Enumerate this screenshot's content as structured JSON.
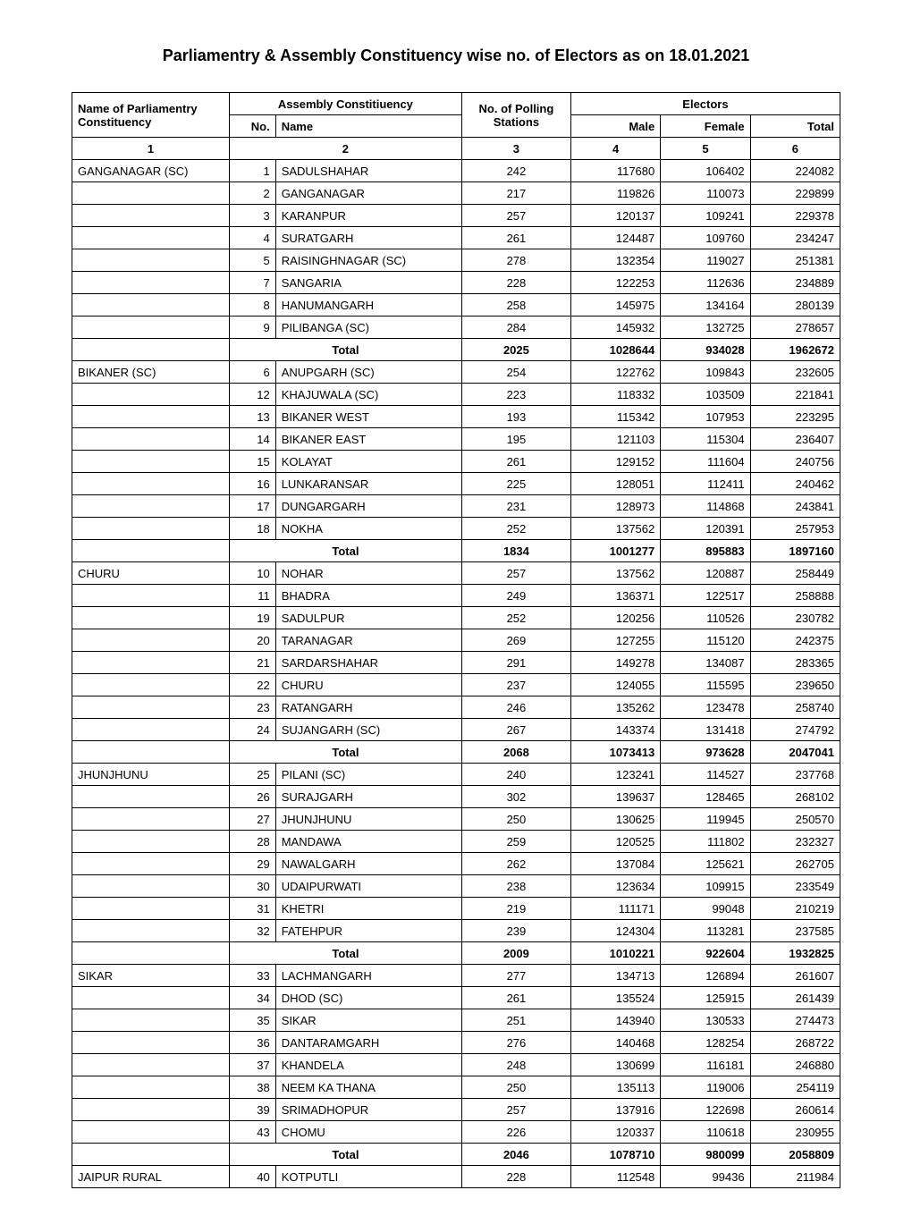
{
  "title": "Parliamentry & Assembly Constituency wise no. of Electors as on 18.01.2021",
  "headers": {
    "parliamentary": "Name of Parliamentry Constituency",
    "assembly": "Assembly Constitiuency",
    "no": "No.",
    "name": "Name",
    "polling": "No. of Polling Stations",
    "electors": "Electors",
    "male": "Male",
    "female": "Female",
    "total": "Total",
    "totalLabel": "Total"
  },
  "colNumbers": {
    "c1": "1",
    "c2": "2",
    "c3": "3",
    "c4": "4",
    "c5": "5",
    "c6": "6"
  },
  "groups": [
    {
      "parliamentary": "GANGANAGAR (SC)",
      "rows": [
        {
          "no": "1",
          "name": "SADULSHAHAR",
          "polling": "242",
          "male": "117680",
          "female": "106402",
          "total": "224082"
        },
        {
          "no": "2",
          "name": "GANGANAGAR",
          "polling": "217",
          "male": "119826",
          "female": "110073",
          "total": "229899"
        },
        {
          "no": "3",
          "name": "KARANPUR",
          "polling": "257",
          "male": "120137",
          "female": "109241",
          "total": "229378"
        },
        {
          "no": "4",
          "name": "SURATGARH",
          "polling": "261",
          "male": "124487",
          "female": "109760",
          "total": "234247"
        },
        {
          "no": "5",
          "name": "RAISINGHNAGAR (SC)",
          "polling": "278",
          "male": "132354",
          "female": "119027",
          "total": "251381"
        },
        {
          "no": "7",
          "name": "SANGARIA",
          "polling": "228",
          "male": "122253",
          "female": "112636",
          "total": "234889"
        },
        {
          "no": "8",
          "name": "HANUMANGARH",
          "polling": "258",
          "male": "145975",
          "female": "134164",
          "total": "280139"
        },
        {
          "no": "9",
          "name": "PILIBANGA (SC)",
          "polling": "284",
          "male": "145932",
          "female": "132725",
          "total": "278657"
        }
      ],
      "totals": {
        "polling": "2025",
        "male": "1028644",
        "female": "934028",
        "total": "1962672"
      }
    },
    {
      "parliamentary": "BIKANER (SC)",
      "rows": [
        {
          "no": "6",
          "name": "ANUPGARH (SC)",
          "polling": "254",
          "male": "122762",
          "female": "109843",
          "total": "232605"
        },
        {
          "no": "12",
          "name": "KHAJUWALA (SC)",
          "polling": "223",
          "male": "118332",
          "female": "103509",
          "total": "221841"
        },
        {
          "no": "13",
          "name": "BIKANER WEST",
          "polling": "193",
          "male": "115342",
          "female": "107953",
          "total": "223295"
        },
        {
          "no": "14",
          "name": "BIKANER EAST",
          "polling": "195",
          "male": "121103",
          "female": "115304",
          "total": "236407"
        },
        {
          "no": "15",
          "name": "KOLAYAT",
          "polling": "261",
          "male": "129152",
          "female": "111604",
          "total": "240756"
        },
        {
          "no": "16",
          "name": "LUNKARANSAR",
          "polling": "225",
          "male": "128051",
          "female": "112411",
          "total": "240462"
        },
        {
          "no": "17",
          "name": "DUNGARGARH",
          "polling": "231",
          "male": "128973",
          "female": "114868",
          "total": "243841"
        },
        {
          "no": "18",
          "name": "NOKHA",
          "polling": "252",
          "male": "137562",
          "female": "120391",
          "total": "257953"
        }
      ],
      "totals": {
        "polling": "1834",
        "male": "1001277",
        "female": "895883",
        "total": "1897160"
      }
    },
    {
      "parliamentary": "CHURU",
      "rows": [
        {
          "no": "10",
          "name": "NOHAR",
          "polling": "257",
          "male": "137562",
          "female": "120887",
          "total": "258449"
        },
        {
          "no": "11",
          "name": "BHADRA",
          "polling": "249",
          "male": "136371",
          "female": "122517",
          "total": "258888"
        },
        {
          "no": "19",
          "name": "SADULPUR",
          "polling": "252",
          "male": "120256",
          "female": "110526",
          "total": "230782"
        },
        {
          "no": "20",
          "name": "TARANAGAR",
          "polling": "269",
          "male": "127255",
          "female": "115120",
          "total": "242375"
        },
        {
          "no": "21",
          "name": "SARDARSHAHAR",
          "polling": "291",
          "male": "149278",
          "female": "134087",
          "total": "283365"
        },
        {
          "no": "22",
          "name": "CHURU",
          "polling": "237",
          "male": "124055",
          "female": "115595",
          "total": "239650"
        },
        {
          "no": "23",
          "name": "RATANGARH",
          "polling": "246",
          "male": "135262",
          "female": "123478",
          "total": "258740"
        },
        {
          "no": "24",
          "name": "SUJANGARH (SC)",
          "polling": "267",
          "male": "143374",
          "female": "131418",
          "total": "274792"
        }
      ],
      "totals": {
        "polling": "2068",
        "male": "1073413",
        "female": "973628",
        "total": "2047041"
      }
    },
    {
      "parliamentary": "JHUNJHUNU",
      "rows": [
        {
          "no": "25",
          "name": "PILANI (SC)",
          "polling": "240",
          "male": "123241",
          "female": "114527",
          "total": "237768"
        },
        {
          "no": "26",
          "name": "SURAJGARH",
          "polling": "302",
          "male": "139637",
          "female": "128465",
          "total": "268102"
        },
        {
          "no": "27",
          "name": "JHUNJHUNU",
          "polling": "250",
          "male": "130625",
          "female": "119945",
          "total": "250570"
        },
        {
          "no": "28",
          "name": "MANDAWA",
          "polling": "259",
          "male": "120525",
          "female": "111802",
          "total": "232327"
        },
        {
          "no": "29",
          "name": "NAWALGARH",
          "polling": "262",
          "male": "137084",
          "female": "125621",
          "total": "262705"
        },
        {
          "no": "30",
          "name": "UDAIPURWATI",
          "polling": "238",
          "male": "123634",
          "female": "109915",
          "total": "233549"
        },
        {
          "no": "31",
          "name": "KHETRI",
          "polling": "219",
          "male": "111171",
          "female": "99048",
          "total": "210219"
        },
        {
          "no": "32",
          "name": "FATEHPUR",
          "polling": "239",
          "male": "124304",
          "female": "113281",
          "total": "237585"
        }
      ],
      "totals": {
        "polling": "2009",
        "male": "1010221",
        "female": "922604",
        "total": "1932825"
      }
    },
    {
      "parliamentary": "SIKAR",
      "rows": [
        {
          "no": "33",
          "name": "LACHMANGARH",
          "polling": "277",
          "male": "134713",
          "female": "126894",
          "total": "261607"
        },
        {
          "no": "34",
          "name": "DHOD (SC)",
          "polling": "261",
          "male": "135524",
          "female": "125915",
          "total": "261439"
        },
        {
          "no": "35",
          "name": "SIKAR",
          "polling": "251",
          "male": "143940",
          "female": "130533",
          "total": "274473"
        },
        {
          "no": "36",
          "name": "DANTARAMGARH",
          "polling": "276",
          "male": "140468",
          "female": "128254",
          "total": "268722"
        },
        {
          "no": "37",
          "name": "KHANDELA",
          "polling": "248",
          "male": "130699",
          "female": "116181",
          "total": "246880"
        },
        {
          "no": "38",
          "name": "NEEM KA THANA",
          "polling": "250",
          "male": "135113",
          "female": "119006",
          "total": "254119"
        },
        {
          "no": "39",
          "name": "SRIMADHOPUR",
          "polling": "257",
          "male": "137916",
          "female": "122698",
          "total": "260614"
        },
        {
          "no": "43",
          "name": "CHOMU",
          "polling": "226",
          "male": "120337",
          "female": "110618",
          "total": "230955"
        }
      ],
      "totals": {
        "polling": "2046",
        "male": "1078710",
        "female": "980099",
        "total": "2058809"
      }
    },
    {
      "parliamentary": "JAIPUR RURAL",
      "rows": [
        {
          "no": "40",
          "name": "KOTPUTLI",
          "polling": "228",
          "male": "112548",
          "female": "99436",
          "total": "211984"
        }
      ],
      "totals": null
    }
  ]
}
